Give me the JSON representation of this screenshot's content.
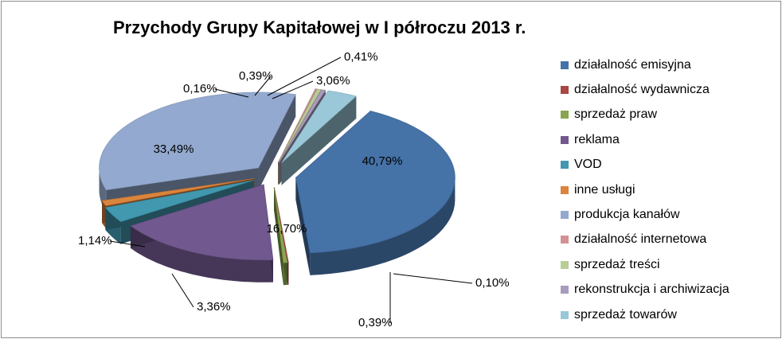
{
  "chart_data": {
    "type": "pie",
    "title": "Przychody Grupy Kapitałowej w I półroczu 2013 r.",
    "legend_position": "right",
    "slices": [
      {
        "name": "działalność emisyjna",
        "value": 40.79,
        "label": "40,79%",
        "color": "#4572A7"
      },
      {
        "name": "działalność wydawnicza",
        "value": 0.1,
        "label": "0,10%",
        "color": "#AA4643"
      },
      {
        "name": "sprzedaż praw",
        "value": 0.39,
        "label": "0,39%",
        "color": "#89A54E"
      },
      {
        "name": "reklama",
        "value": 16.7,
        "label": "16,70%",
        "color": "#71588F"
      },
      {
        "name": "VOD",
        "value": 3.36,
        "label": "3,36%",
        "color": "#4198AF"
      },
      {
        "name": "inne usługi",
        "value": 1.14,
        "label": "1,14%",
        "color": "#DB843D"
      },
      {
        "name": "produkcja kanałów",
        "value": 33.49,
        "label": "33,49%",
        "color": "#93A9CF"
      },
      {
        "name": "działalność internetowa",
        "value": 0.16,
        "label": "0,16%",
        "color": "#D19392"
      },
      {
        "name": "sprzedaż treści",
        "value": 0.39,
        "label": "0,39%",
        "color": "#B9CD96"
      },
      {
        "name": "rekonstrukcja i archiwizacja",
        "value": 0.41,
        "label": "0,41%",
        "color": "#A99BBD"
      },
      {
        "name": "sprzedaż towarów",
        "value": 3.06,
        "label": "3,06%",
        "color": "#9AC8D8"
      }
    ]
  }
}
